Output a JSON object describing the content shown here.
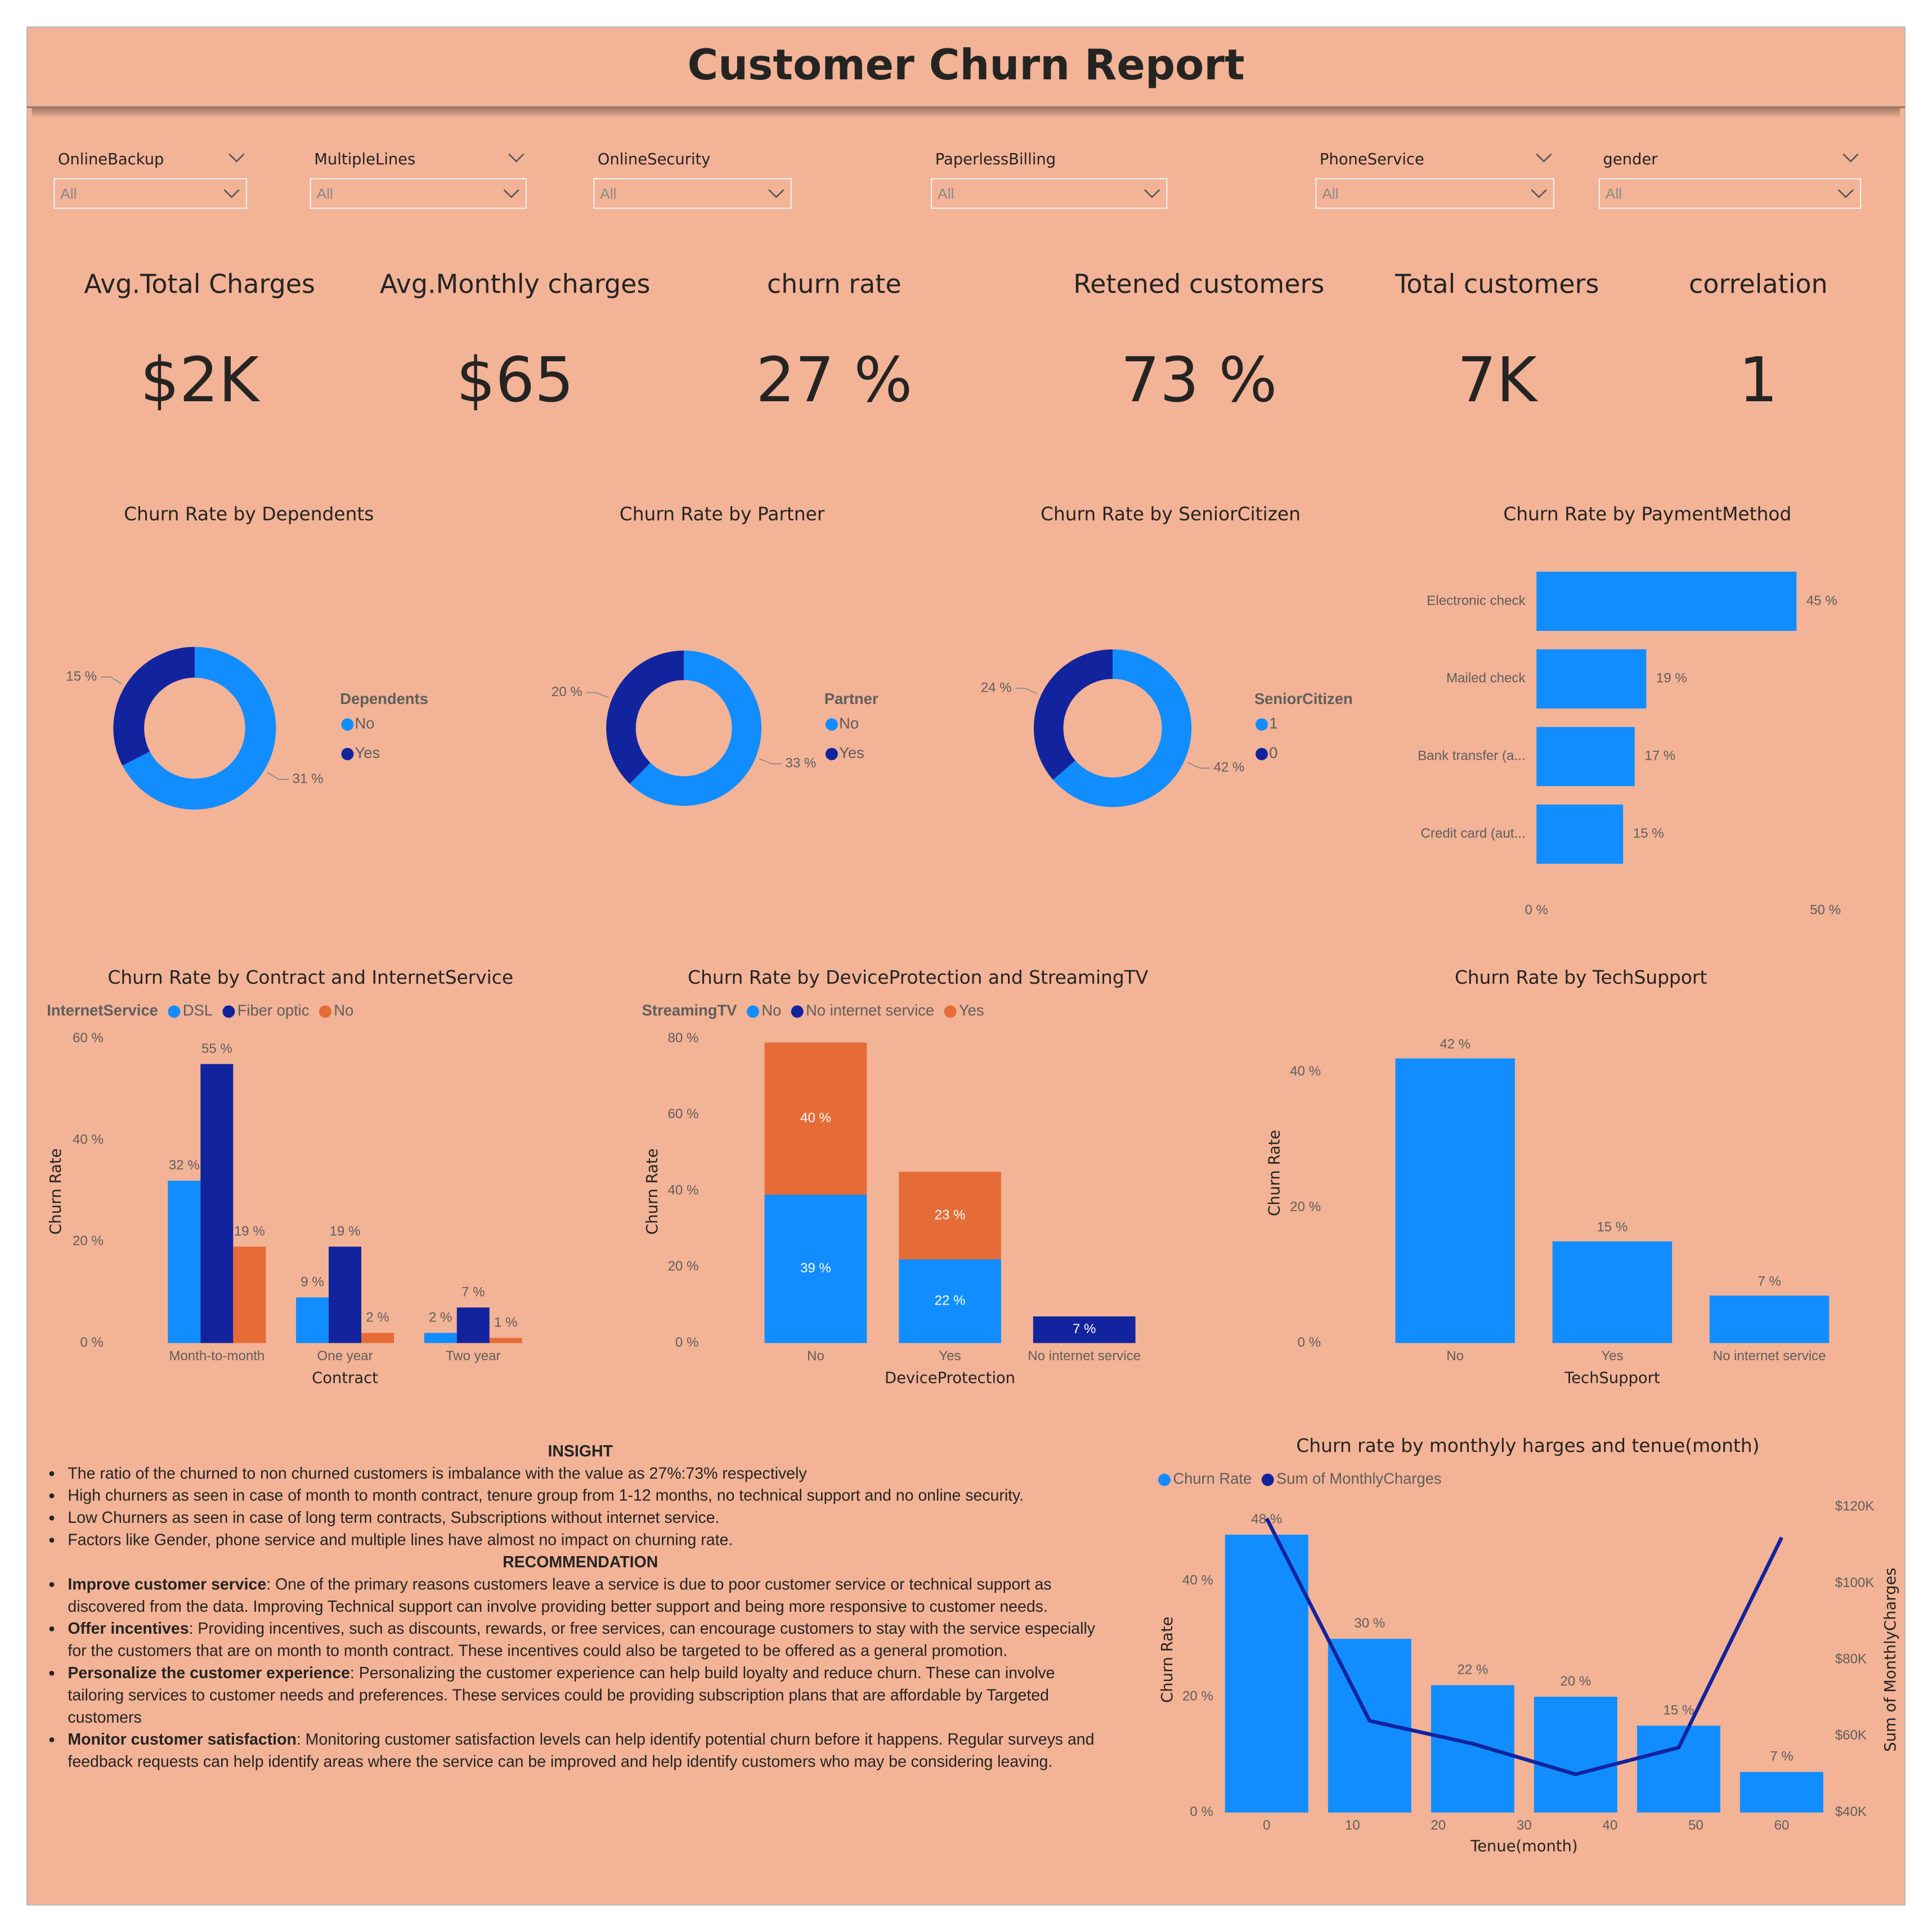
{
  "header": {
    "title": "Customer Churn Report"
  },
  "slicers": [
    {
      "label": "OnlineBackup",
      "value": "All"
    },
    {
      "label": "MultipleLines",
      "value": "All"
    },
    {
      "label": "OnlineSecurity",
      "value": "All"
    },
    {
      "label": "PaperlessBilling",
      "value": "All"
    },
    {
      "label": "PhoneService",
      "value": "All"
    },
    {
      "label": "gender",
      "value": "All"
    }
  ],
  "kpis": [
    {
      "label": "Avg.Total Charges",
      "value": "$2K"
    },
    {
      "label": "Avg.Monthly charges",
      "value": "$65"
    },
    {
      "label": "churn rate",
      "value": "27 %"
    },
    {
      "label": "Retened customers",
      "value": "73 %"
    },
    {
      "label": "Total customers",
      "value": "7K"
    },
    {
      "label": "correlation",
      "value": "1"
    }
  ],
  "chart_data": [
    {
      "type": "donut",
      "title": "Churn Rate by Dependents",
      "legend_title": "Dependents",
      "categories": [
        "No",
        "Yes"
      ],
      "values": [
        31,
        15
      ],
      "value_labels": [
        "31 %",
        "15 %"
      ],
      "colors": [
        "#118DFF",
        "#12239E"
      ]
    },
    {
      "type": "donut",
      "title": "Churn Rate by Partner",
      "legend_title": "Partner",
      "categories": [
        "No",
        "Yes"
      ],
      "values": [
        33,
        20
      ],
      "value_labels": [
        "33 %",
        "20 %"
      ],
      "colors": [
        "#118DFF",
        "#12239E"
      ]
    },
    {
      "type": "donut",
      "title": "Churn Rate by SeniorCitizen",
      "legend_title": "SeniorCitizen",
      "categories": [
        "1",
        "0"
      ],
      "values": [
        42,
        24
      ],
      "value_labels": [
        "42 %",
        "24 %"
      ],
      "colors": [
        "#118DFF",
        "#12239E"
      ]
    },
    {
      "type": "hbar",
      "title": "Churn Rate by PaymentMethod",
      "categories": [
        "Electronic check",
        "Mailed check",
        "Bank transfer (a...",
        "Credit card (aut..."
      ],
      "values": [
        45,
        19,
        17,
        15
      ],
      "value_labels": [
        "45 %",
        "19 %",
        "17 %",
        "15 %"
      ],
      "color": "#118DFF",
      "xlim": [
        0,
        50
      ],
      "xticks": [
        {
          "value": 0,
          "label": "0 %"
        },
        {
          "value": 50,
          "label": "50 %"
        }
      ]
    },
    {
      "type": "groupbar",
      "title": "Churn Rate by Contract and InternetService",
      "legend_title": "InternetService",
      "xlabel": "Contract",
      "ylabel": "Churn Rate",
      "categories": [
        "Month-to-month",
        "One year",
        "Two year"
      ],
      "series": [
        {
          "name": "DSL",
          "color": "#118DFF",
          "values": [
            32,
            9,
            2
          ],
          "value_labels": [
            "32 %",
            "9 %",
            "2 %"
          ]
        },
        {
          "name": "Fiber optic",
          "color": "#12239E",
          "values": [
            55,
            19,
            7
          ],
          "value_labels": [
            "55 %",
            "19 %",
            "7 %"
          ]
        },
        {
          "name": "No",
          "color": "#E66C37",
          "values": [
            19,
            2,
            1
          ],
          "value_labels": [
            "19 %",
            "2 %",
            "1 %"
          ]
        }
      ],
      "ylim": [
        0,
        60
      ],
      "yticks": [
        {
          "value": 0,
          "label": "0 %"
        },
        {
          "value": 20,
          "label": "20 %"
        },
        {
          "value": 40,
          "label": "40 %"
        },
        {
          "value": 60,
          "label": "60 %"
        }
      ]
    },
    {
      "type": "stackbar",
      "title": "Churn Rate by DeviceProtection and StreamingTV",
      "legend_title": "StreamingTV",
      "xlabel": "DeviceProtection",
      "ylabel": "Churn Rate",
      "categories": [
        "No",
        "Yes",
        "No internet service"
      ],
      "series": [
        {
          "name": "No",
          "color": "#118DFF",
          "values": [
            39,
            22,
            null
          ],
          "value_labels": [
            "39 %",
            "22 %",
            null
          ]
        },
        {
          "name": "No internet service",
          "color": "#12239E",
          "values": [
            null,
            null,
            7
          ],
          "value_labels": [
            null,
            null,
            "7 %"
          ]
        },
        {
          "name": "Yes",
          "color": "#E66C37",
          "values": [
            40,
            23,
            null
          ],
          "value_labels": [
            "40 %",
            "23 %",
            null
          ]
        }
      ],
      "ylim": [
        0,
        80
      ],
      "yticks": [
        {
          "value": 0,
          "label": "0 %"
        },
        {
          "value": 20,
          "label": "20 %"
        },
        {
          "value": 40,
          "label": "40 %"
        },
        {
          "value": 60,
          "label": "60 %"
        },
        {
          "value": 80,
          "label": "80 %"
        }
      ]
    },
    {
      "type": "bar",
      "title": "Churn Rate by TechSupport",
      "xlabel": "TechSupport",
      "ylabel": "Churn Rate",
      "categories": [
        "No",
        "Yes",
        "No internet service"
      ],
      "values": [
        42,
        15,
        7
      ],
      "value_labels": [
        "42 %",
        "15 %",
        "7 %"
      ],
      "color": "#118DFF",
      "ylim": [
        0,
        44
      ],
      "yticks": [
        {
          "value": 0,
          "label": "0 %"
        },
        {
          "value": 20,
          "label": "20 %"
        },
        {
          "value": 40,
          "label": "40 %"
        }
      ]
    },
    {
      "type": "combo",
      "title": "Churn rate by monthyly harges and tenue(month)",
      "xlabel": "Tenue(month)",
      "ylabel": "Churn Rate",
      "y2label": "Sum of MonthlyCharges",
      "x": [
        0,
        12,
        24,
        36,
        48,
        60
      ],
      "xlim": [
        -5.5,
        65.5
      ],
      "xticks": [
        0,
        10,
        20,
        30,
        40,
        50,
        60
      ],
      "series": [
        {
          "name": "Churn Rate",
          "kind": "bar",
          "color": "#118DFF",
          "values": [
            48,
            30,
            22,
            20,
            15,
            7
          ],
          "value_labels": [
            "48 %",
            "30 %",
            "22 %",
            "20 %",
            "15 %",
            "7 %"
          ]
        },
        {
          "name": "Sum of MonthlyCharges",
          "kind": "line",
          "axis": "y2",
          "color": "#12239E",
          "values": [
            117000,
            64000,
            58000,
            50000,
            57000,
            112000
          ]
        }
      ],
      "ylim": [
        0,
        52.8
      ],
      "yticks": [
        {
          "value": 0,
          "label": "0 %"
        },
        {
          "value": 20,
          "label": "20 %"
        },
        {
          "value": 40,
          "label": "40 %"
        }
      ],
      "y2lim": [
        40000,
        120000
      ],
      "y2ticks": [
        {
          "value": 40000,
          "label": "$40K"
        },
        {
          "value": 60000,
          "label": "$60K"
        },
        {
          "value": 80000,
          "label": "$80K"
        },
        {
          "value": 100000,
          "label": "$100K"
        },
        {
          "value": 120000,
          "label": "$120K"
        }
      ]
    }
  ],
  "insight": {
    "title": "INSIGHT",
    "points": [
      "The ratio of the churned to non churned customers is imbalance with the value as 27%:73% respectively",
      "High churners as seen in case of month to month contract, tenure group from 1-12 months, no technical support and no online security.",
      "Low Churners as seen in case of long term contracts, Subscriptions without internet service.",
      "Factors like Gender, phone service and multiple lines have almost no impact on churning rate."
    ],
    "recommendation_title": "RECOMMENDATION",
    "recommendations": [
      {
        "lead": "Improve customer service",
        "text": ": One of the primary reasons customers leave a service is due to poor customer service or technical support as discovered from the data. Improving Technical support can involve providing better support and being more responsive to customer needs."
      },
      {
        "lead": "Offer incentives",
        "text": ": Providing incentives, such as discounts, rewards, or free services, can encourage customers to stay with the service especially for the customers that are on month to month contract. These incentives could also be targeted to be offered as a general promotion."
      },
      {
        "lead": "Personalize the customer experience",
        "text": ": Personalizing the customer experience can help build loyalty and reduce churn. These can involve tailoring services to customer needs and preferences. These services could be providing subscription plans that are affordable by Targeted customers"
      },
      {
        "lead": "Monitor customer satisfaction",
        "text": ": Monitoring customer satisfaction levels can help identify potential churn before it happens. Regular surveys and feedback requests can help identify areas where the service can be improved and help identify customers who may be considering leaving."
      }
    ]
  }
}
